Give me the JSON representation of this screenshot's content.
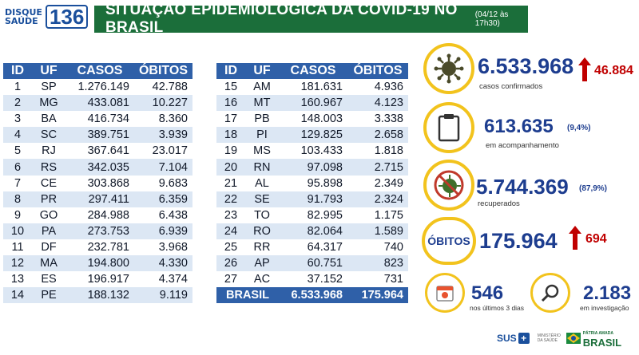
{
  "header": {
    "logo_text": "DISQUE SAÚDE",
    "logo_number": "136",
    "title": "SITUAÇÃO EPIDEMIOLÓGICA DA COVID-19 NO BRASIL",
    "date": "(04/12 às 17h30)"
  },
  "table_headers": [
    "ID",
    "UF",
    "CASOS",
    "ÓBITOS"
  ],
  "table_left": [
    [
      "1",
      "SP",
      "1.276.149",
      "42.788"
    ],
    [
      "2",
      "MG",
      "433.081",
      "10.227"
    ],
    [
      "3",
      "BA",
      "416.734",
      "8.360"
    ],
    [
      "4",
      "SC",
      "389.751",
      "3.939"
    ],
    [
      "5",
      "RJ",
      "367.641",
      "23.017"
    ],
    [
      "6",
      "RS",
      "342.035",
      "7.104"
    ],
    [
      "7",
      "CE",
      "303.868",
      "9.683"
    ],
    [
      "8",
      "PR",
      "297.411",
      "6.359"
    ],
    [
      "9",
      "GO",
      "284.988",
      "6.438"
    ],
    [
      "10",
      "PA",
      "273.753",
      "6.939"
    ],
    [
      "11",
      "DF",
      "232.781",
      "3.968"
    ],
    [
      "12",
      "MA",
      "194.800",
      "4.330"
    ],
    [
      "13",
      "ES",
      "196.917",
      "4.374"
    ],
    [
      "14",
      "PE",
      "188.132",
      "9.119"
    ]
  ],
  "table_right": [
    [
      "15",
      "AM",
      "181.631",
      "4.936"
    ],
    [
      "16",
      "MT",
      "160.967",
      "4.123"
    ],
    [
      "17",
      "PB",
      "148.003",
      "3.338"
    ],
    [
      "18",
      "PI",
      "129.825",
      "2.658"
    ],
    [
      "19",
      "MS",
      "103.433",
      "1.818"
    ],
    [
      "20",
      "RN",
      "97.098",
      "2.715"
    ],
    [
      "21",
      "AL",
      "95.898",
      "2.349"
    ],
    [
      "22",
      "SE",
      "91.793",
      "2.324"
    ],
    [
      "23",
      "TO",
      "82.995",
      "1.175"
    ],
    [
      "24",
      "RO",
      "82.064",
      "1.589"
    ],
    [
      "25",
      "RR",
      "64.317",
      "740"
    ],
    [
      "26",
      "AP",
      "60.751",
      "823"
    ],
    [
      "27",
      "AC",
      "37.152",
      "731"
    ]
  ],
  "total": {
    "label": "BRASIL",
    "casos": "6.533.968",
    "obitos": "175.964"
  },
  "indicators": {
    "confirmed": {
      "value": "6.533.968",
      "delta": "46.884",
      "label": "casos confirmados"
    },
    "monitoring": {
      "value": "613.635",
      "pct": "(9,4%)",
      "label": "em acompanhamento"
    },
    "recovered": {
      "value": "5.744.369",
      "pct": "(87,9%)",
      "label": "recuperados"
    },
    "deaths": {
      "tag": "ÓBITOS",
      "value": "175.964",
      "delta": "694"
    },
    "recent": {
      "value": "546",
      "label": "nos últimos 3 dias"
    },
    "investigation": {
      "value": "2.183",
      "label": "em investigação"
    }
  },
  "footer": {
    "sus": "SUS",
    "ministry": "MINISTÉRIO DA SAÚDE",
    "brasil_top": "PÁTRIA AMADA",
    "brasil": "BRASIL"
  },
  "colors": {
    "header_green": "#1b6e3a",
    "table_blue": "#2f60a8",
    "accent_yellow": "#f2c31d",
    "delta_red": "#c00000"
  }
}
